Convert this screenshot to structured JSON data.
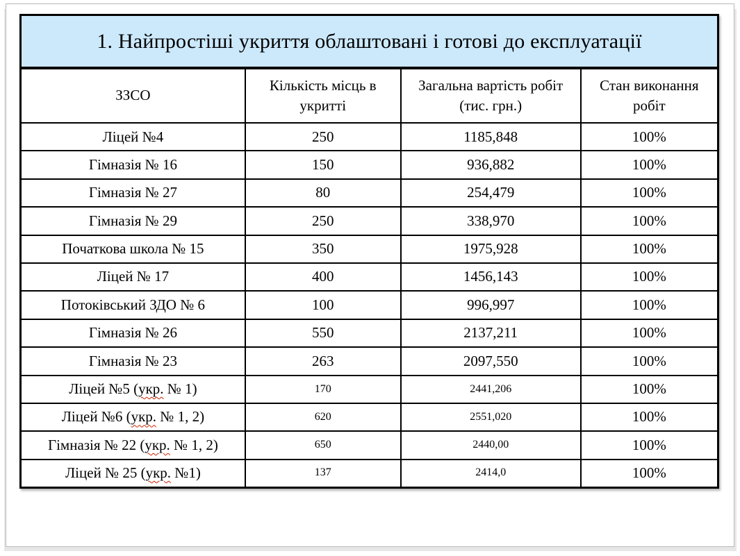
{
  "title": {
    "text": "1. Найпростіші укриття облаштовані і готові до експлуатації"
  },
  "colors": {
    "title_bg": "#cce9fc",
    "table_border": "#000000",
    "spellcheck_underline": "#cc2200",
    "page_border": "#b9b9b9"
  },
  "table": {
    "columns": [
      "ЗЗСО",
      "Кількість місць в укритті",
      "Загальна вартість робіт (тис. грн.)",
      "Стан виконання робіт"
    ],
    "rows": [
      {
        "school": "Ліцей №4",
        "seats": "250",
        "cost": "1185,848",
        "status": "100%"
      },
      {
        "school": "Гімназія № 16",
        "seats": "150",
        "cost": "936,882",
        "status": "100%"
      },
      {
        "school": "Гімназія № 27",
        "seats": "80",
        "cost": "254,479",
        "status": "100%"
      },
      {
        "school": "Гімназія № 29",
        "seats": "250",
        "cost": "338,970",
        "status": "100%"
      },
      {
        "school": "Початкова школа № 15",
        "seats": "350",
        "cost": "1975,928",
        "status": "100%"
      },
      {
        "school": "Ліцей № 17",
        "seats": "400",
        "cost": "1456,143",
        "status": "100%"
      },
      {
        "school": "Потоківський ЗДО № 6",
        "seats": "100",
        "cost": "996,997",
        "status": "100%"
      },
      {
        "school": "Гімназія № 26",
        "seats": "550",
        "cost": "2137,211",
        "status": "100%"
      },
      {
        "school": "Гімназія № 23",
        "seats": "263",
        "cost": "2097,550",
        "status": "100%"
      },
      {
        "school": "Ліцей №5 (укр. № 1)",
        "spell_word": "укр.",
        "small_numbers": true,
        "seats": "170",
        "cost": "2441,206",
        "status": "100%"
      },
      {
        "school": "Ліцей №6 (укр. № 1, 2)",
        "spell_word": "укр.",
        "small_numbers": true,
        "seats": "620",
        "cost": "2551,020",
        "status": "100%"
      },
      {
        "school": "Гімназія № 22 (укр. № 1, 2)",
        "spell_word": "укр.",
        "small_numbers": true,
        "seats": "650",
        "cost": "2440,00",
        "status": "100%"
      },
      {
        "school": "Ліцей № 25 (укр. №1)",
        "spell_word": "укр.",
        "small_numbers": true,
        "seats": "137",
        "cost": "2414,0",
        "status": "100%"
      }
    ]
  }
}
